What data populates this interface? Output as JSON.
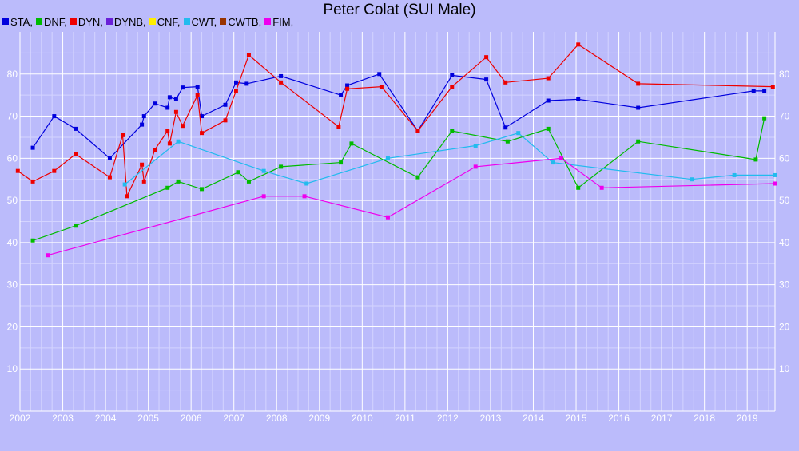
{
  "chart_data": {
    "type": "line",
    "title": "Peter Colat (SUI Male)",
    "xlabel": "",
    "ylabel": "",
    "xlim": [
      2002,
      2019.65
    ],
    "ylim": [
      0,
      90
    ],
    "grid": true,
    "legend_placement": "top-left",
    "x_ticks": [
      "2002",
      "2003",
      "2004",
      "2005",
      "2006",
      "2007",
      "2008",
      "2009",
      "2010",
      "2011",
      "2012",
      "2013",
      "2014",
      "2015",
      "2016",
      "2017",
      "2018",
      "2019"
    ],
    "y_ticks": [
      "10",
      "20",
      "30",
      "40",
      "50",
      "60",
      "70",
      "80"
    ],
    "legend": [
      {
        "label": "STA,",
        "color": "#0000dd"
      },
      {
        "label": "DNF,",
        "color": "#00bb00"
      },
      {
        "label": "DYN,",
        "color": "#ee0000"
      },
      {
        "label": "DYNB,",
        "color": "#6a1fd8"
      },
      {
        "label": "CNF,",
        "color": "#ffee00"
      },
      {
        "label": "CWT,",
        "color": "#22bbee"
      },
      {
        "label": "CWTB,",
        "color": "#993300"
      },
      {
        "label": "FIM,",
        "color": "#ee00ee"
      }
    ],
    "series": [
      {
        "name": "STA",
        "color": "#0000dd",
        "points": [
          [
            2002.3,
            62.5
          ],
          [
            2002.8,
            70
          ],
          [
            2003.3,
            67
          ],
          [
            2004.1,
            60
          ],
          [
            2004.85,
            68
          ],
          [
            2004.9,
            70
          ],
          [
            2005.15,
            73
          ],
          [
            2005.45,
            72
          ],
          [
            2005.5,
            74.5
          ],
          [
            2005.65,
            74
          ],
          [
            2005.8,
            76.8
          ],
          [
            2006.15,
            77
          ],
          [
            2006.25,
            70
          ],
          [
            2006.8,
            72.7
          ],
          [
            2007.05,
            78
          ],
          [
            2007.3,
            77.7
          ],
          [
            2008.1,
            79.5
          ],
          [
            2009.5,
            75
          ],
          [
            2009.65,
            77.3
          ],
          [
            2010.4,
            80
          ],
          [
            2011.3,
            66.5
          ],
          [
            2012.1,
            79.7
          ],
          [
            2012.9,
            78.7
          ],
          [
            2013.35,
            67.3
          ],
          [
            2014.35,
            73.7
          ],
          [
            2015.05,
            74
          ],
          [
            2016.45,
            72
          ],
          [
            2019.15,
            76
          ],
          [
            2019.4,
            76
          ]
        ]
      },
      {
        "name": "DNF",
        "color": "#00bb00",
        "points": [
          [
            2002.3,
            40.5
          ],
          [
            2003.3,
            44
          ],
          [
            2005.45,
            53
          ],
          [
            2005.7,
            54.5
          ],
          [
            2006.25,
            52.7
          ],
          [
            2007.1,
            56.7
          ],
          [
            2007.35,
            54.5
          ],
          [
            2008.1,
            58
          ],
          [
            2009.5,
            59
          ],
          [
            2009.75,
            63.5
          ],
          [
            2011.3,
            55.5
          ],
          [
            2012.1,
            66.5
          ],
          [
            2013.4,
            64
          ],
          [
            2014.35,
            67
          ],
          [
            2015.05,
            53
          ],
          [
            2016.45,
            64
          ],
          [
            2019.2,
            59.7
          ],
          [
            2019.4,
            69.5
          ]
        ]
      },
      {
        "name": "DYN",
        "color": "#ee0000",
        "points": [
          [
            2001.95,
            57
          ],
          [
            2002.3,
            54.5
          ],
          [
            2002.8,
            57
          ],
          [
            2003.3,
            61
          ],
          [
            2004.1,
            55.5
          ],
          [
            2004.4,
            65.5
          ],
          [
            2004.5,
            51
          ],
          [
            2004.85,
            58.5
          ],
          [
            2004.9,
            54.5
          ],
          [
            2005.15,
            62
          ],
          [
            2005.45,
            66.5
          ],
          [
            2005.5,
            63.5
          ],
          [
            2005.65,
            71
          ],
          [
            2005.8,
            67.7
          ],
          [
            2006.15,
            75
          ],
          [
            2006.25,
            66
          ],
          [
            2006.8,
            69
          ],
          [
            2007.05,
            76
          ],
          [
            2007.35,
            84.5
          ],
          [
            2008.1,
            78
          ],
          [
            2009.45,
            67.5
          ],
          [
            2009.65,
            76.5
          ],
          [
            2010.45,
            77
          ],
          [
            2011.3,
            66.5
          ],
          [
            2012.1,
            77
          ],
          [
            2012.9,
            84
          ],
          [
            2013.35,
            78
          ],
          [
            2014.35,
            79
          ],
          [
            2015.05,
            87
          ],
          [
            2016.45,
            77.7
          ],
          [
            2019.6,
            77
          ]
        ]
      },
      {
        "name": "CWT",
        "color": "#22bbee",
        "points": [
          [
            2004.45,
            53.8
          ],
          [
            2005.7,
            64
          ],
          [
            2007.7,
            57
          ],
          [
            2008.7,
            54
          ],
          [
            2010.6,
            60
          ],
          [
            2012.65,
            63
          ],
          [
            2013.65,
            66
          ],
          [
            2014.45,
            59
          ],
          [
            2017.7,
            55
          ],
          [
            2018.7,
            56
          ],
          [
            2019.65,
            56
          ]
        ]
      },
      {
        "name": "FIM",
        "color": "#ee00ee",
        "points": [
          [
            2002.65,
            37
          ],
          [
            2007.7,
            51
          ],
          [
            2008.65,
            51
          ],
          [
            2010.6,
            46
          ],
          [
            2012.65,
            58
          ],
          [
            2014.65,
            60
          ],
          [
            2015.6,
            53
          ],
          [
            2019.65,
            54
          ]
        ]
      }
    ]
  }
}
